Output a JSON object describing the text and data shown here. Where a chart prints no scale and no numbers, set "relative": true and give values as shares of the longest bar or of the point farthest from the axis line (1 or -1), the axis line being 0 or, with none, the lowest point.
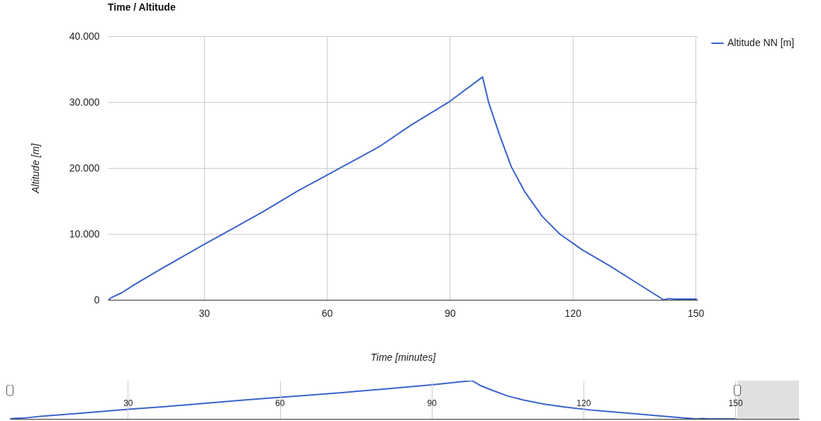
{
  "chart_data": [
    {
      "type": "line",
      "title": "Time / Altitude",
      "xlabel": "Time [minutes]",
      "ylabel": "Altitude [m]",
      "x": [
        6.7,
        7.3,
        10,
        13,
        19,
        30,
        37.3,
        44.5,
        52.8,
        59.7,
        65,
        72.7,
        80.5,
        90,
        98,
        99.5,
        102.1,
        105,
        108.2,
        112.5,
        116.8,
        122.3,
        128.9,
        135.8,
        142.2,
        143.6,
        145,
        150.3
      ],
      "series": [
        {
          "name": "Altitude NN [m]",
          "color": "#3b63cc",
          "values": [
            0,
            300,
            1100,
            2300,
            4500,
            8400,
            10900,
            13400,
            16500,
            18800,
            20600,
            23200,
            26500,
            30100,
            33800,
            29900,
            25100,
            20200,
            16500,
            12700,
            10000,
            7600,
            5200,
            2500,
            0,
            200,
            100,
            100
          ]
        }
      ],
      "xlim": [
        6.5,
        150.5
      ],
      "xticks": [
        30,
        60,
        90,
        120,
        150
      ],
      "ylim": [
        0,
        40000
      ],
      "yticks": [
        0,
        {
          "value": 10000,
          "label": "10.000"
        },
        {
          "value": 20000,
          "label": "20.000"
        },
        {
          "value": 30000,
          "label": "30.000"
        },
        {
          "value": 40000,
          "label": "40.000"
        }
      ],
      "grid": true,
      "legend": "top right"
    },
    {
      "type": "line",
      "relative": true,
      "x": [
        6.7,
        7.3,
        10,
        13,
        19,
        30,
        37.3,
        44.5,
        52.8,
        59.7,
        65,
        72.7,
        80.5,
        90,
        98,
        99.5,
        102.1,
        105,
        108.2,
        112.5,
        116.8,
        122.3,
        128.9,
        135.8,
        142.2,
        143.6,
        145,
        150.3
      ],
      "series": [
        {
          "color": "#3b63cc",
          "values": [
            0,
            0.01,
            0.03,
            0.07,
            0.13,
            0.25,
            0.32,
            0.4,
            0.49,
            0.56,
            0.61,
            0.69,
            0.78,
            0.89,
            1,
            0.88,
            0.74,
            0.6,
            0.49,
            0.38,
            0.3,
            0.22,
            0.15,
            0.07,
            0,
            0.01,
            0,
            0
          ]
        }
      ],
      "xlim": [
        6.7,
        162.6
      ],
      "xticks": [
        30,
        60,
        90,
        120,
        150
      ],
      "bands": [
        {
          "axis": "x",
          "from": 150.4,
          "to": 162.6,
          "color": "#e0e0e0"
        }
      ],
      "grid": "x"
    }
  ]
}
